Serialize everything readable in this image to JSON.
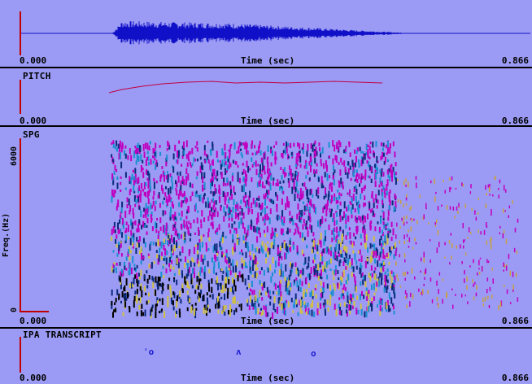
{
  "waveform": {
    "start": "0.000",
    "end": "0.866",
    "xlabel": "Time (sec)"
  },
  "pitch": {
    "title": "PITCH",
    "start": "0.000",
    "end": "0.866",
    "xlabel": "Time (sec)"
  },
  "spectrogram": {
    "title": "SPG",
    "ylabel": "Freq.(Hz)",
    "ymax": "6000",
    "ymin": "0",
    "start": "0.000",
    "end": "0.866",
    "xlabel": "Time (sec)"
  },
  "transcript": {
    "title": "IPA TRANSCRIPT",
    "symbols": [
      "ˈo",
      "ʌ",
      "o"
    ],
    "start": "0.000",
    "end": "0.866",
    "xlabel": "Time (sec)"
  },
  "colors": {
    "background": "#9b9bf5",
    "waveform": "#1010c8",
    "pitch": "#c00040",
    "marker": "#c00000"
  }
}
